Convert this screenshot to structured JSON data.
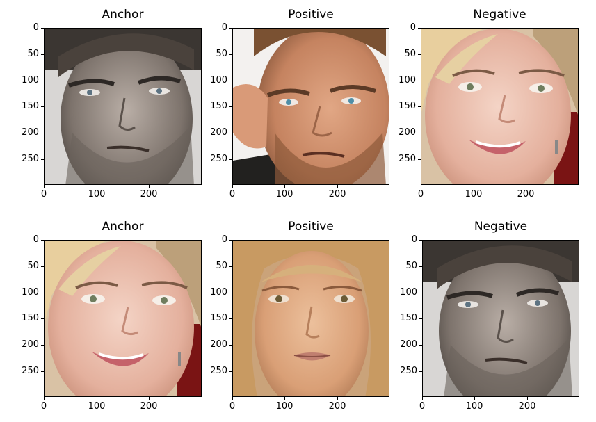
{
  "panels": [
    {
      "title": "Anchor",
      "subject": "male-face-1"
    },
    {
      "title": "Positive",
      "subject": "male-face-2"
    },
    {
      "title": "Negative",
      "subject": "female-face-1"
    },
    {
      "title": "Anchor",
      "subject": "female-face-1"
    },
    {
      "title": "Positive",
      "subject": "female-face-2"
    },
    {
      "title": "Negative",
      "subject": "male-face-1"
    }
  ],
  "axes": {
    "yticks": [
      "0",
      "50",
      "100",
      "150",
      "200",
      "250"
    ],
    "xticks": [
      "0",
      "100",
      "200"
    ],
    "image_size": [
      300,
      300
    ]
  }
}
